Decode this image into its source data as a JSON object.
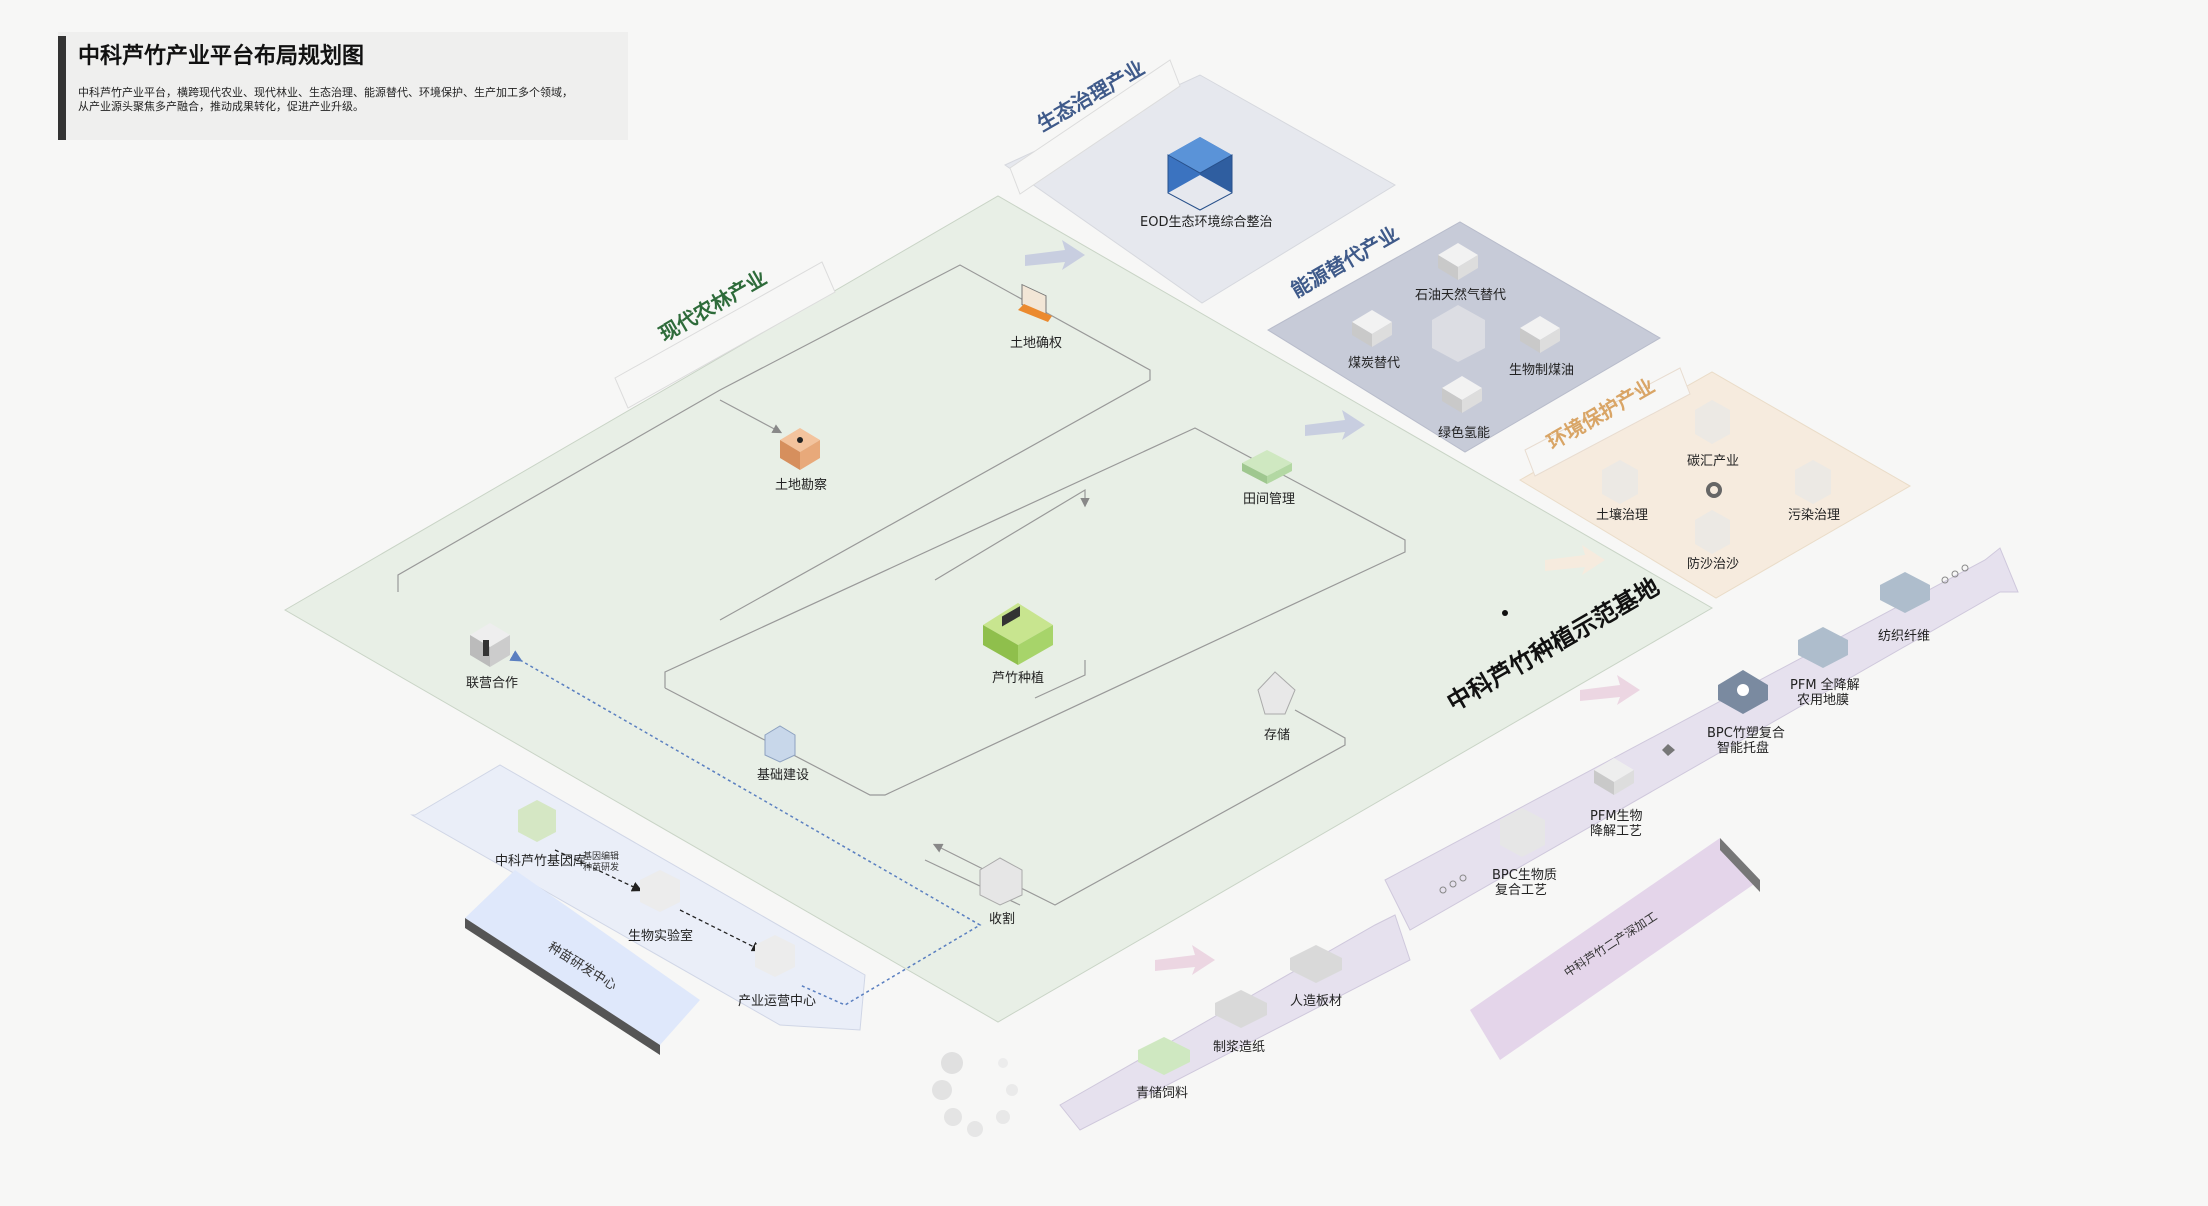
{
  "title": {
    "main": "中科芦竹产业平台布局规划图",
    "line1": "中科芦竹产业平台，横跨现代农业、现代林业、生态治理、能源替代、环境保护、生产加工多个领域，",
    "line2": "从产业源头聚焦多产融合，推动成果转化，促进产业升级。"
  },
  "zones": {
    "forestry": "现代农林产业",
    "ecology": "生态治理产业",
    "energy": "能源替代产业",
    "environment": "环境保护产业",
    "base": "中科芦竹种植示范基地",
    "rnd": "种苗研发中心",
    "processing": "中科芦竹二产深加工"
  },
  "nodes": {
    "land_rights": "土地确权",
    "land_survey": "土地勘察",
    "field_mgmt": "田间管理",
    "joint_venture": "联营合作",
    "planting": "芦竹种植",
    "infrastructure": "基础建设",
    "storage": "存储",
    "harvest": "收割",
    "eod": "EOD生态环境综合整治",
    "oil_gas": "石油天然气替代",
    "coal": "煤炭替代",
    "bio_coal_oil": "生物制煤油",
    "green_hydrogen": "绿色氢能",
    "carbon_sink": "碳汇产业",
    "soil": "土壤治理",
    "pollution": "污染治理",
    "desert": "防沙治沙",
    "gene_bank": "中科芦竹基因库",
    "gene_edit_1": "基因编辑",
    "gene_edit_2": "种苗研发",
    "bio_lab": "生物实验室",
    "ops_center": "产业运营中心",
    "textile": "纺织纤维",
    "pfm_film_1": "PFM 全降解",
    "pfm_film_2": "农用地膜",
    "bpc_tray_1": "BPC竹塑复合",
    "bpc_tray_2": "智能托盘",
    "pfm_process_1": "PFM生物",
    "pfm_process_2": "降解工艺",
    "bpc_bio_1": "BPC生物质",
    "bpc_bio_2": "复合工艺",
    "board": "人造板材",
    "paper": "制浆造纸",
    "feed": "青储饲料"
  },
  "colors": {
    "base_platform": "#e8efe6",
    "ecology_zone": "#e6e8ee",
    "energy_zone": "#c7cbd8",
    "environment_zone": "#f6ebde",
    "processing_arrow": "#e6e1ee",
    "rnd_arrow": "#e6eaf5",
    "forestry_title": "#2e6b3a",
    "zone_title_blue": "#3f5a8a",
    "env_title": "#d9a566",
    "eod_cube": "#3b73c0",
    "planting_cube": "#a7d46a",
    "survey_cube": "#e8a97a"
  },
  "icons": {
    "eod": "cube-icon",
    "planting": "cube-icon",
    "land_rights": "computer-icon",
    "ops_center": "gear-icon",
    "bpc_tray": "gear-icon"
  }
}
